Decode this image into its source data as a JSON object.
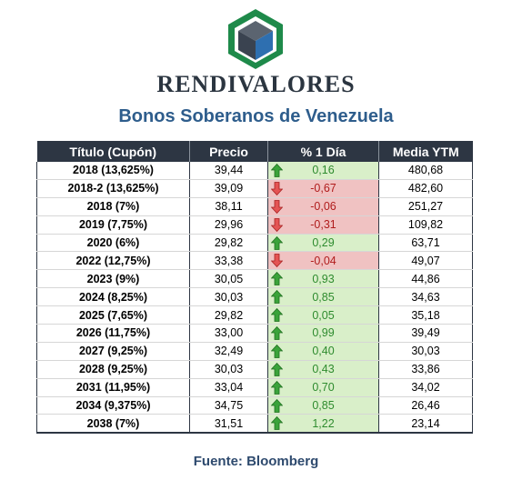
{
  "brand": "RENDIVALORES",
  "subtitle": "Bonos Soberanos de Venezuela",
  "columns": [
    "Título (Cupón)",
    "Precio",
    "% 1 Día",
    "Media YTM"
  ],
  "rows": [
    {
      "title": "2018 (13,625%)",
      "price": "39,44",
      "change": "0,16",
      "direction": "up",
      "ytm": "480,68"
    },
    {
      "title": "2018-2 (13,625%)",
      "price": "39,09",
      "change": "-0,67",
      "direction": "down",
      "ytm": "482,60"
    },
    {
      "title": "2018 (7%)",
      "price": "38,11",
      "change": "-0,06",
      "direction": "down",
      "ytm": "251,27"
    },
    {
      "title": "2019 (7,75%)",
      "price": "29,96",
      "change": "-0,31",
      "direction": "down",
      "ytm": "109,82"
    },
    {
      "title": "2020 (6%)",
      "price": "29,82",
      "change": "0,29",
      "direction": "up",
      "ytm": "63,71"
    },
    {
      "title": "2022 (12,75%)",
      "price": "33,38",
      "change": "-0,04",
      "direction": "down",
      "ytm": "49,07"
    },
    {
      "title": "2023 (9%)",
      "price": "30,05",
      "change": "0,93",
      "direction": "up",
      "ytm": "44,86"
    },
    {
      "title": "2024 (8,25%)",
      "price": "30,03",
      "change": "0,85",
      "direction": "up",
      "ytm": "34,63"
    },
    {
      "title": "2025 (7,65%)",
      "price": "29,82",
      "change": "0,05",
      "direction": "up",
      "ytm": "35,18"
    },
    {
      "title": "2026 (11,75%)",
      "price": "33,00",
      "change": "0,99",
      "direction": "up",
      "ytm": "39,49"
    },
    {
      "title": "2027 (9,25%)",
      "price": "32,49",
      "change": "0,40",
      "direction": "up",
      "ytm": "30,03"
    },
    {
      "title": "2028 (9,25%)",
      "price": "30,03",
      "change": "0,43",
      "direction": "up",
      "ytm": "33,86"
    },
    {
      "title": "2031 (11,95%)",
      "price": "33,04",
      "change": "0,70",
      "direction": "up",
      "ytm": "34,02"
    },
    {
      "title": "2034 (9,375%)",
      "price": "34,75",
      "change": "0,85",
      "direction": "up",
      "ytm": "26,46"
    },
    {
      "title": "2038 (7%)",
      "price": "31,51",
      "change": "1,22",
      "direction": "up",
      "ytm": "23,14"
    }
  ],
  "source": "Fuente: Bloomberg",
  "colors": {
    "header_bg": "#2d3643",
    "subtitle": "#2e5d8c",
    "up_bg": "#d9efc9",
    "up_text": "#2e8b2e",
    "down_bg": "#f0c2c2",
    "down_text": "#b01c1c",
    "logo_green": "#1e8a4a",
    "logo_blue": "#2e6fb0"
  },
  "icons": {
    "up": "arrow-up-icon",
    "down": "arrow-down-icon"
  }
}
